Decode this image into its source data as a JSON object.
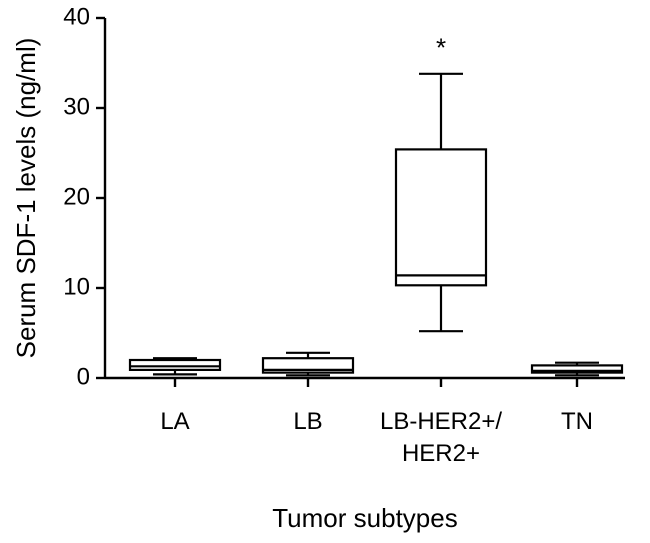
{
  "chart_data": {
    "type": "box",
    "xlabel": "Tumor subtypes",
    "ylabel": "Serum SDF-1 levels  (ng/ml)",
    "ylim": [
      0,
      40
    ],
    "yticks": [
      "0",
      "10",
      "20",
      "30",
      "40"
    ],
    "categories": [
      [
        "LA"
      ],
      [
        "LB"
      ],
      [
        "LB-HER2+/",
        "HER2+"
      ],
      [
        "TN"
      ]
    ],
    "boxes": [
      {
        "whisker_low": 0.4,
        "q1": 0.9,
        "median": 1.3,
        "q3": 2.0,
        "whisker_high": 2.2
      },
      {
        "whisker_low": 0.3,
        "q1": 0.6,
        "median": 0.9,
        "q3": 2.2,
        "whisker_high": 2.8
      },
      {
        "whisker_low": 5.2,
        "q1": 10.3,
        "median": 11.4,
        "q3": 25.4,
        "whisker_high": 33.8
      },
      {
        "whisker_low": 0.3,
        "q1": 0.6,
        "median": 0.8,
        "q3": 1.4,
        "whisker_high": 1.7
      }
    ],
    "annotations": [
      {
        "category_index": 2,
        "text": "*",
        "y": 36.5
      }
    ],
    "grid": false,
    "legend": "none"
  }
}
